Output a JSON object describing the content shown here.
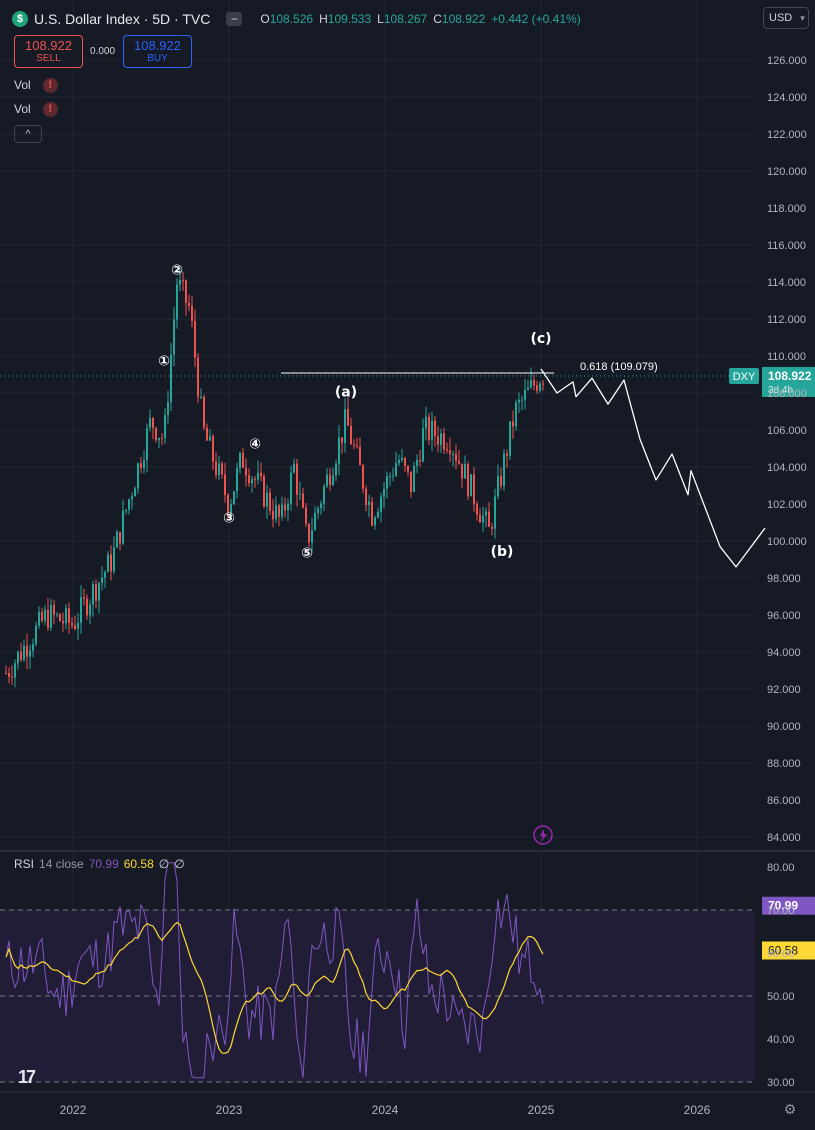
{
  "header": {
    "symbol_badge": "$",
    "title": "U.S. Dollar Index · 5D · TVC",
    "collapse_glyph": "−",
    "ohlc": {
      "o_label": "O",
      "o": "108.526",
      "h_label": "H",
      "h": "109.533",
      "l_label": "L",
      "l": "108.267",
      "c_label": "C",
      "c": "108.922",
      "change": "+0.442 (+0.41%)"
    },
    "currency": "USD"
  },
  "trade": {
    "sell_price": "108.922",
    "sell_label": "SELL",
    "spread": "0.000",
    "buy_price": "108.922",
    "buy_label": "BUY"
  },
  "indicators": {
    "vol1": "Vol",
    "vol2": "Vol",
    "warn_glyph": "!",
    "collapse_glyph": "^"
  },
  "chart_data": {
    "type": "candlestick",
    "symbol": "DXY",
    "timeframe": "5D",
    "y_axis_ticks": [
      "126.000",
      "124.000",
      "122.000",
      "120.000",
      "118.000",
      "116.000",
      "114.000",
      "112.000",
      "110.000",
      "108.000",
      "106.000",
      "104.000",
      "102.000",
      "100.000",
      "98.000",
      "96.000",
      "94.000",
      "92.000",
      "90.000",
      "88.000",
      "86.000",
      "84.000"
    ],
    "x_axis_ticks": [
      "2022",
      "2023",
      "2024",
      "2025",
      "2026"
    ],
    "price_range": [
      83.3,
      127.2
    ],
    "last_price": "108.922",
    "last_price_label": "DXY",
    "countdown": "3d 4h",
    "price_path_keypoints": [
      {
        "date": "2021-05",
        "price": 90.5
      },
      {
        "date": "2021-08",
        "price": 93.0
      },
      {
        "date": "2021-11",
        "price": 96.0
      },
      {
        "date": "2022-01",
        "price": 95.5
      },
      {
        "date": "2022-04",
        "price": 99.0
      },
      {
        "date": "2022-07",
        "price": 106.5
      },
      {
        "date": "2022-08",
        "price": 105.5
      },
      {
        "date": "2022-09",
        "price": 114.0
      },
      {
        "date": "2022-10",
        "price": 112.5
      },
      {
        "date": "2022-11",
        "price": 106.0
      },
      {
        "date": "2023-01",
        "price": 102.0
      },
      {
        "date": "2023-02",
        "price": 104.5
      },
      {
        "date": "2023-05",
        "price": 101.0
      },
      {
        "date": "2023-06",
        "price": 104.0
      },
      {
        "date": "2023-07",
        "price": 100.0
      },
      {
        "date": "2023-10",
        "price": 106.5
      },
      {
        "date": "2023-12",
        "price": 101.5
      },
      {
        "date": "2024-02",
        "price": 104.5
      },
      {
        "date": "2024-03",
        "price": 103.0
      },
      {
        "date": "2024-04",
        "price": 106.0
      },
      {
        "date": "2024-06",
        "price": 105.5
      },
      {
        "date": "2024-09",
        "price": 100.5
      },
      {
        "date": "2024-11",
        "price": 107.0
      },
      {
        "date": "2025-01",
        "price": 109.0
      }
    ],
    "wave_labels": [
      {
        "text": "①",
        "date": "2022-08",
        "price": 109.5
      },
      {
        "text": "②",
        "date": "2022-09",
        "price": 114.4
      },
      {
        "text": "③",
        "date": "2023-01",
        "price": 101.0
      },
      {
        "text": "④",
        "date": "2023-03",
        "price": 105.0
      },
      {
        "text": "⑤",
        "date": "2023-07",
        "price": 99.1
      },
      {
        "text": "(a)",
        "date": "2023-10",
        "price": 107.8
      },
      {
        "text": "(b)",
        "date": "2024-10",
        "price": 99.2
      },
      {
        "text": "(c)",
        "date": "2025-01",
        "price": 110.7
      }
    ],
    "fib_line": {
      "label": "0.618 (109.079)",
      "price": 109.079,
      "from_date": "2023-05",
      "to_date": "2025-02"
    },
    "projection_path": [
      {
        "date": "2025-01",
        "price": 109.3
      },
      {
        "date": "2025-02",
        "price": 108.0
      },
      {
        "date": "2025-03",
        "price": 108.6
      },
      {
        "date": "2025-03",
        "price": 107.8
      },
      {
        "date": "2025-04",
        "price": 108.8
      },
      {
        "date": "2025-05",
        "price": 107.4
      },
      {
        "date": "2025-06",
        "price": 108.7
      },
      {
        "date": "2025-07",
        "price": 105.5
      },
      {
        "date": "2025-08",
        "price": 103.3
      },
      {
        "date": "2025-09",
        "price": 104.7
      },
      {
        "date": "2025-10",
        "price": 102.5
      },
      {
        "date": "2025-10",
        "price": 103.8
      },
      {
        "date": "2025-12",
        "price": 99.7
      },
      {
        "date": "2026-01",
        "price": 98.6
      },
      {
        "date": "2026-03",
        "price": 100.7
      }
    ]
  },
  "rsi": {
    "legend_name": "RSI",
    "legend_params": "14 close",
    "value": "70.99",
    "ma_value": "60.58",
    "empty1": "∅",
    "empty2": "∅",
    "ticks": [
      "80.00",
      "70.00",
      "60.00",
      "50.00",
      "40.00",
      "30.00"
    ],
    "badge_rsi": "70.99",
    "badge_ma": "60.58",
    "bands": {
      "upper": 70,
      "middle": 50,
      "lower": 30
    }
  },
  "colors": {
    "background": "#161a25",
    "up": "#26a69a",
    "down": "#ef5350",
    "rsi_line": "#7e57c2",
    "rsi_ma": "#fdd835",
    "accent_purple": "#9c27b0"
  },
  "footer": {
    "logo": "17",
    "settings_icon": "⚙"
  }
}
